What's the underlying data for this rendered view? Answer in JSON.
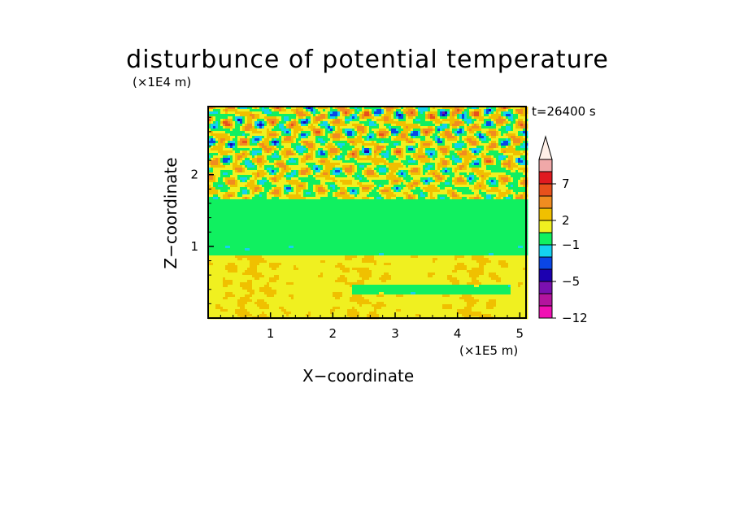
{
  "chart_data": {
    "type": "heatmap",
    "title": "disturbunce of potential temperature",
    "time_label": "t=26400 s",
    "xlabel": "X−coordinate",
    "ylabel": "Z−coordinate",
    "x_unit": "(×1E5 m)",
    "y_unit": "(×1E4 m)",
    "xlim": [
      0,
      5.1
    ],
    "ylim": [
      0,
      2.95
    ],
    "x_ticks": [
      {
        "value": 1,
        "label": "1"
      },
      {
        "value": 2,
        "label": "2"
      },
      {
        "value": 3,
        "label": "3"
      },
      {
        "value": 4,
        "label": "4"
      },
      {
        "value": 5,
        "label": "5"
      }
    ],
    "y_ticks": [
      {
        "value": 1,
        "label": "1"
      },
      {
        "value": 2,
        "label": "2"
      }
    ],
    "colorbar": {
      "levels": [
        {
          "color": "#f010b4"
        },
        {
          "color": "#b4149e"
        },
        {
          "color": "#7a10b0"
        },
        {
          "color": "#1c00b0"
        },
        {
          "color": "#0a46e6"
        },
        {
          "color": "#14d2f0"
        },
        {
          "color": "#10f060"
        },
        {
          "color": "#f0f020"
        },
        {
          "color": "#f0c000"
        },
        {
          "color": "#f08c20"
        },
        {
          "color": "#e8501c"
        },
        {
          "color": "#e01a20"
        },
        {
          "color": "#f0a8a8"
        }
      ],
      "over_color": "#fff0e8",
      "tick_labels": [
        {
          "level_index": 0,
          "label": "−12"
        },
        {
          "level_index": 3,
          "label": "−5"
        },
        {
          "level_index": 6,
          "label": "−1"
        },
        {
          "level_index": 8,
          "label": "2"
        },
        {
          "level_index": 11,
          "label": "7"
        }
      ]
    }
  }
}
